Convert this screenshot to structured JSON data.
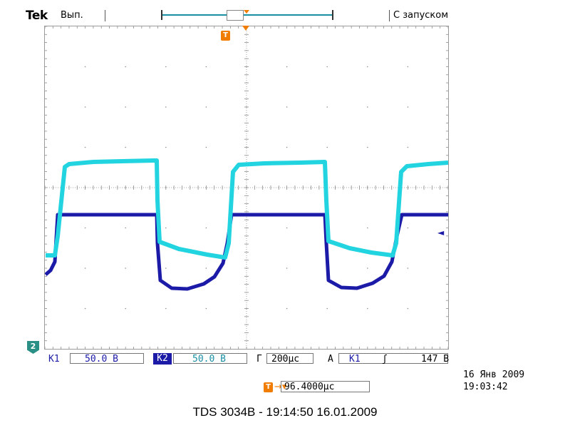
{
  "header": {
    "brand": "Tek",
    "run_status": "Вып.",
    "trigger_mode": "С запуском"
  },
  "markers": {
    "trigger_icon": "T",
    "channel_marker": "2",
    "trigger_level_icon": "left-arrow-icon"
  },
  "status_bar": {
    "ch1_label": "K1",
    "ch1_scale": "50.0 В",
    "ch2_label": "K2",
    "ch2_scale": "50.0 В",
    "timebase_label": "Г",
    "timebase_value": "200µс",
    "acq_label": "A",
    "trigger_source": "K1",
    "trigger_slope": "ʃ",
    "trigger_level": "147 В"
  },
  "timestamp": {
    "date": "16 Янв 2009",
    "time": "19:03:42"
  },
  "horizontal_position": {
    "arrow": "→▾",
    "value": "96.4000µс"
  },
  "caption": "TDS 3034B - 19:14:50   16.01.2009",
  "colors": {
    "ch1": "#1b1ba8",
    "ch2": "#22d4e0",
    "trigger": "#f07c00",
    "grid": "#8c8c8c"
  }
}
